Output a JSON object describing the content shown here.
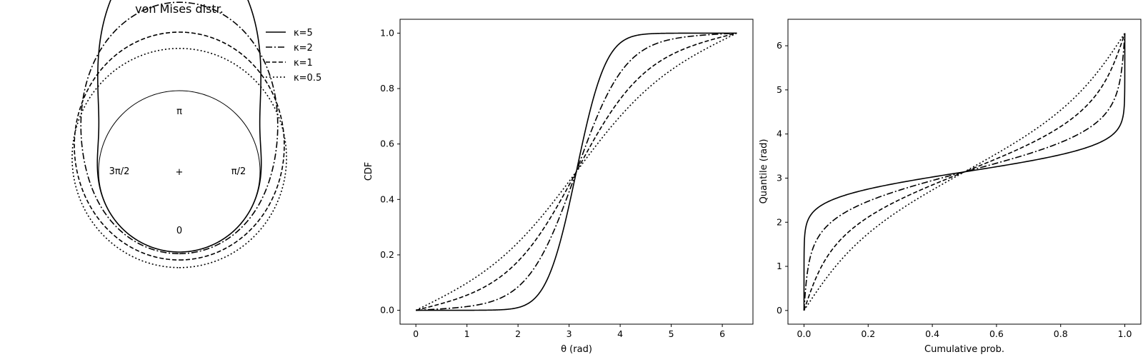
{
  "chart_data": [
    {
      "type": "line",
      "subtype": "polar",
      "title": "von Mises distr.",
      "angle_labels": {
        "top": "π",
        "bottom": "0",
        "left": "3π/2",
        "right": "π/2",
        "center": "+"
      },
      "mean_angle_at_top": "π",
      "legend": {
        "placement": "top-right"
      },
      "series": [
        {
          "name": "κ=5",
          "kappa": 5,
          "linestyle": "solid"
        },
        {
          "name": "κ=2",
          "kappa": 2,
          "linestyle": "dashdot"
        },
        {
          "name": "κ=1",
          "kappa": 1,
          "linestyle": "dashed"
        },
        {
          "name": "κ=0.5",
          "kappa": 0.5,
          "linestyle": "dotted"
        }
      ],
      "reference_circle": true
    },
    {
      "type": "line",
      "title": "",
      "xlabel": "θ (rad)",
      "ylabel": "CDF",
      "xlim": [
        -0.31,
        6.6
      ],
      "ylim": [
        -0.05,
        1.05
      ],
      "xticks": [
        "0",
        "1",
        "2",
        "3",
        "4",
        "5",
        "6"
      ],
      "yticks": [
        "0.0",
        "0.2",
        "0.4",
        "0.6",
        "0.8",
        "1.0"
      ],
      "x_range": [
        0,
        6.2832
      ],
      "mean": 3.1416,
      "grid": false,
      "series": [
        {
          "name": "κ=5",
          "kappa": 5,
          "linestyle": "solid"
        },
        {
          "name": "κ=2",
          "kappa": 2,
          "linestyle": "dashdot"
        },
        {
          "name": "κ=1",
          "kappa": 1,
          "linestyle": "dashed"
        },
        {
          "name": "κ=0.5",
          "kappa": 0.5,
          "linestyle": "dotted"
        }
      ]
    },
    {
      "type": "line",
      "title": "",
      "xlabel": "Cumulative prob.",
      "ylabel": "Quantile (rad)",
      "xlim": [
        -0.05,
        1.05
      ],
      "ylim": [
        -0.31,
        6.6
      ],
      "xticks": [
        "0.0",
        "0.2",
        "0.4",
        "0.6",
        "0.8",
        "1.0"
      ],
      "yticks": [
        "0",
        "1",
        "2",
        "3",
        "4",
        "5",
        "6"
      ],
      "grid": false,
      "series": [
        {
          "name": "κ=5",
          "kappa": 5,
          "linestyle": "solid"
        },
        {
          "name": "κ=2",
          "kappa": 2,
          "linestyle": "dashdot"
        },
        {
          "name": "κ=1",
          "kappa": 1,
          "linestyle": "dashed"
        },
        {
          "name": "κ=0.5",
          "kappa": 0.5,
          "linestyle": "dotted"
        }
      ]
    }
  ]
}
